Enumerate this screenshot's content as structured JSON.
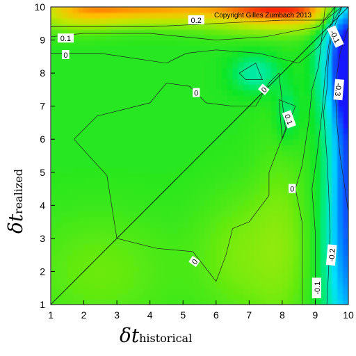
{
  "chart_data": {
    "type": "heatmap",
    "title": "",
    "xlabel": {
      "symbol": "δt",
      "subscript": "historical"
    },
    "ylabel": {
      "symbol": "δt",
      "subscript": "realized"
    },
    "xlim": [
      1,
      10
    ],
    "ylim": [
      1,
      10
    ],
    "xticks": [
      "1",
      "2",
      "3",
      "4",
      "5",
      "6",
      "7",
      "8",
      "9",
      "10"
    ],
    "yticks": [
      "1",
      "2",
      "3",
      "4",
      "5",
      "6",
      "7",
      "8",
      "9",
      "10"
    ],
    "copyright": "Copyright Gilles Zumbach 2013",
    "diagonal": true,
    "color_scale": [
      "#1a1aff",
      "#00e5ff",
      "#00e61a",
      "#88ee00",
      "#ffcc00",
      "#ff2200"
    ],
    "blobs": [
      {
        "x": 8.0,
        "y": 10.0,
        "sx": 1.6,
        "sy": 0.45,
        "value": 0.32
      },
      {
        "x": 4.0,
        "y": 10.0,
        "sx": 1.6,
        "sy": 0.35,
        "value": 0.22
      },
      {
        "x": 1.8,
        "y": 9.9,
        "sx": 1.0,
        "sy": 0.4,
        "value": 0.15
      },
      {
        "x": 10.0,
        "y": 8.2,
        "sx": 0.28,
        "sy": 1.0,
        "value": -0.55
      },
      {
        "x": 10.0,
        "y": 6.0,
        "sx": 0.3,
        "sy": 3.0,
        "value": -0.35
      },
      {
        "x": 10.0,
        "y": 2.5,
        "sx": 0.5,
        "sy": 2.5,
        "value": -0.22
      },
      {
        "x": 9.6,
        "y": 8.6,
        "sx": 0.4,
        "sy": 1.5,
        "value": -0.18
      },
      {
        "x": 7.2,
        "y": 8.0,
        "sx": 0.5,
        "sy": 0.4,
        "value": -0.1
      },
      {
        "x": 8.15,
        "y": 6.8,
        "sx": 0.25,
        "sy": 0.6,
        "value": -0.07
      },
      {
        "x": 2.5,
        "y": 2.0,
        "sx": 1.6,
        "sy": 1.3,
        "value": 0.05
      },
      {
        "x": 6.8,
        "y": 2.5,
        "sx": 1.0,
        "sy": 1.4,
        "value": 0.06
      },
      {
        "x": 8.0,
        "y": 3.0,
        "sx": 0.6,
        "sy": 2.2,
        "value": 0.05
      }
    ],
    "contours": [
      {
        "points": [
          [
            1,
            9.4
          ],
          [
            4,
            9.4
          ],
          [
            8,
            9.6
          ],
          [
            9.3,
            9.6
          ],
          [
            9.8,
            10
          ]
        ],
        "label": "0.2",
        "label_at": [
          5.4,
          9.6
        ]
      },
      {
        "points": [
          [
            1,
            9.1
          ],
          [
            2,
            9.2
          ],
          [
            4,
            9.2
          ],
          [
            6,
            9.0
          ],
          [
            7.5,
            9.1
          ],
          [
            8.5,
            9.3
          ],
          [
            9.1,
            9.4
          ],
          [
            9.6,
            10
          ]
        ],
        "label": "0.1",
        "label_at": [
          1.45,
          9.05
        ]
      },
      {
        "points": [
          [
            1,
            8.6
          ],
          [
            2.5,
            8.6
          ],
          [
            4.5,
            8.3
          ],
          [
            5.1,
            8.6
          ],
          [
            6,
            8.7
          ],
          [
            7.3,
            8.6
          ],
          [
            8.5,
            8.3
          ],
          [
            9.1,
            8.8
          ],
          [
            9.5,
            9.5
          ],
          [
            9.8,
            10
          ]
        ],
        "label": "0",
        "label_at": [
          1.45,
          8.55
        ]
      },
      {
        "points": [
          [
            6.7,
            8.0
          ],
          [
            7.2,
            8.3
          ],
          [
            7.4,
            7.8
          ],
          [
            6.9,
            7.8
          ],
          [
            6.7,
            8.0
          ]
        ],
        "label": "",
        "label_at": null
      },
      {
        "points": [
          [
            7.9,
            7.2
          ],
          [
            8.4,
            7.0
          ],
          [
            8.0,
            6.0
          ],
          [
            7.9,
            7.2
          ]
        ],
        "label": "0.1",
        "label_at": [
          8.2,
          6.6
        ]
      },
      {
        "points": [
          [
            1.7,
            6.0
          ],
          [
            2.4,
            6.7
          ],
          [
            4.0,
            7.1
          ],
          [
            4.5,
            7.7
          ],
          [
            5.2,
            7.6
          ],
          [
            5.7,
            7.1
          ],
          [
            6.5,
            7.0
          ],
          [
            7.2,
            7.0
          ],
          [
            7.6,
            7.7
          ],
          [
            7.9,
            8.0
          ],
          [
            8.1,
            6.3
          ],
          [
            7.6,
            5.0
          ],
          [
            7.6,
            4.3
          ],
          [
            7.0,
            3.5
          ],
          [
            6.5,
            3.3
          ],
          [
            6.3,
            2.5
          ],
          [
            6.0,
            1.7
          ],
          [
            5.3,
            2.6
          ],
          [
            4.2,
            2.7
          ],
          [
            3.0,
            3.0
          ],
          [
            2.7,
            4.9
          ],
          [
            1.7,
            6.0
          ]
        ],
        "label": "0",
        "label_at": [
          5.4,
          7.4
        ]
      },
      {
        "points": [
          [
            9.3,
            10
          ],
          [
            9.1,
            8.2
          ],
          [
            8.9,
            7.5
          ],
          [
            8.8,
            6.5
          ],
          [
            8.6,
            5.2
          ],
          [
            8.4,
            4.5
          ],
          [
            8.6,
            3.5
          ],
          [
            8.6,
            2.5
          ],
          [
            8.6,
            1
          ]
        ],
        "label": "0",
        "label_at": [
          8.3,
          4.5
        ]
      },
      {
        "points": [
          [
            9.6,
            10
          ],
          [
            9.4,
            8.8
          ],
          [
            9.3,
            8.0
          ],
          [
            9.2,
            6.8
          ],
          [
            9.05,
            5.5
          ],
          [
            8.9,
            4.5
          ],
          [
            9.0,
            3.2
          ],
          [
            9.0,
            2.0
          ],
          [
            9.0,
            1
          ]
        ],
        "label": "-0.1",
        "label_at": [
          9.05,
          1.5
        ]
      },
      {
        "points": [
          [
            9.8,
            10
          ],
          [
            9.5,
            9.2
          ],
          [
            9.4,
            8.5
          ],
          [
            9.35,
            7.5
          ],
          [
            9.25,
            6.8
          ],
          [
            9.35,
            5.5
          ],
          [
            9.4,
            4.5
          ],
          [
            9.45,
            3.2
          ],
          [
            9.4,
            2.0
          ],
          [
            9.35,
            1
          ]
        ],
        "label": "-0.2",
        "label_at": [
          9.5,
          2.5
        ]
      },
      {
        "points": [
          [
            10,
            9.4
          ],
          [
            9.75,
            8.6
          ],
          [
            9.6,
            7.6
          ],
          [
            9.65,
            6.5
          ],
          [
            9.75,
            5.5
          ],
          [
            9.9,
            4.5
          ],
          [
            10,
            3.8
          ]
        ],
        "label": "-0.3",
        "label_at": [
          9.7,
          7.5
        ]
      }
    ],
    "extra_labels": [
      {
        "text": "0",
        "at": [
          5.35,
          2.3
        ],
        "rotate": -55
      },
      {
        "text": "0",
        "at": [
          7.45,
          7.5
        ],
        "rotate": -50
      },
      {
        "text": "-0.1",
        "at": [
          9.6,
          9.1
        ],
        "rotate": 65
      }
    ]
  }
}
